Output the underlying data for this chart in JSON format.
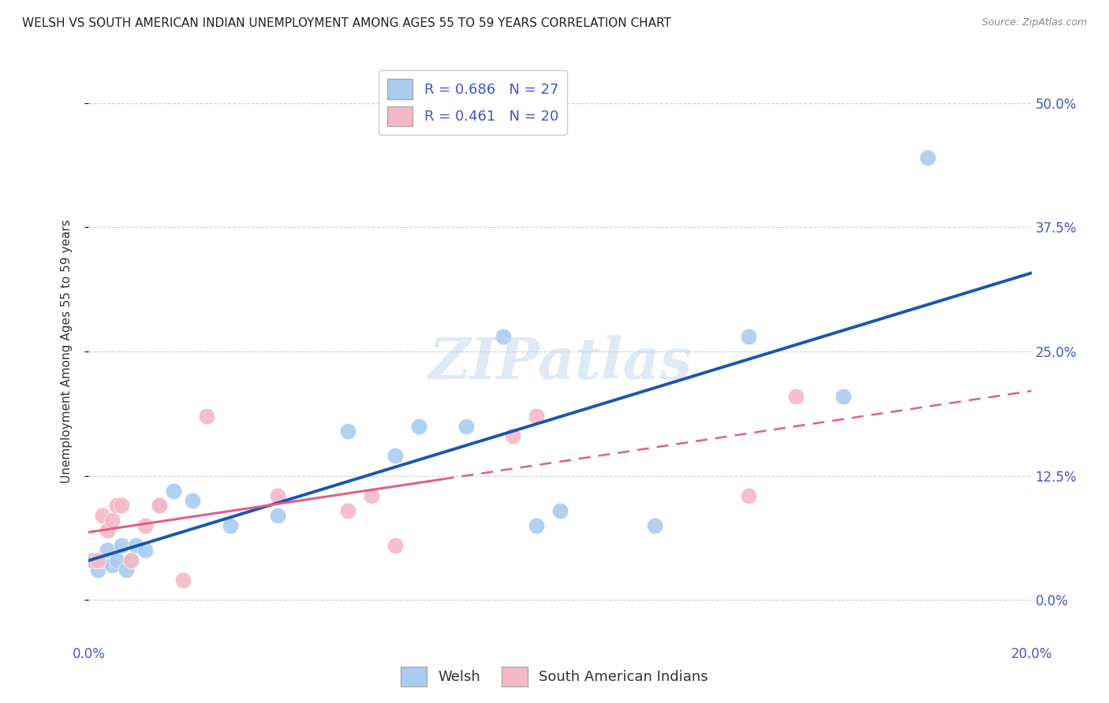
{
  "title": "WELSH VS SOUTH AMERICAN INDIAN UNEMPLOYMENT AMONG AGES 55 TO 59 YEARS CORRELATION CHART",
  "source": "Source: ZipAtlas.com",
  "ylabel": "Unemployment Among Ages 55 to 59 years",
  "xlim": [
    0.0,
    0.2
  ],
  "ylim": [
    -0.04,
    0.54
  ],
  "yticks": [
    0.0,
    0.125,
    0.25,
    0.375,
    0.5
  ],
  "ytick_labels": [
    "0.0%",
    "12.5%",
    "25.0%",
    "37.5%",
    "50.0%"
  ],
  "xticks": [
    0.0,
    0.05,
    0.1,
    0.15,
    0.2
  ],
  "xtick_labels": [
    "0.0%",
    "",
    "",
    "",
    "20.0%"
  ],
  "welsh_R": 0.686,
  "welsh_N": 27,
  "sai_R": 0.461,
  "sai_N": 20,
  "welsh_color": "#aaccf0",
  "welsh_line_color": "#1b55b0",
  "sai_color": "#f5b8c8",
  "sai_line_color": "#e06080",
  "background_color": "#ffffff",
  "grid_color": "#cccccc",
  "welsh_x": [
    0.001,
    0.002,
    0.003,
    0.004,
    0.005,
    0.006,
    0.007,
    0.008,
    0.009,
    0.01,
    0.012,
    0.015,
    0.018,
    0.022,
    0.03,
    0.04,
    0.055,
    0.065,
    0.07,
    0.08,
    0.088,
    0.095,
    0.1,
    0.12,
    0.14,
    0.16,
    0.178
  ],
  "welsh_y": [
    0.04,
    0.03,
    0.04,
    0.05,
    0.035,
    0.04,
    0.055,
    0.03,
    0.04,
    0.055,
    0.05,
    0.095,
    0.11,
    0.1,
    0.075,
    0.085,
    0.17,
    0.145,
    0.175,
    0.175,
    0.265,
    0.075,
    0.09,
    0.075,
    0.265,
    0.205,
    0.445
  ],
  "sai_x": [
    0.001,
    0.002,
    0.003,
    0.004,
    0.005,
    0.006,
    0.007,
    0.009,
    0.012,
    0.015,
    0.02,
    0.025,
    0.04,
    0.055,
    0.06,
    0.065,
    0.09,
    0.095,
    0.14,
    0.15
  ],
  "sai_y": [
    0.04,
    0.04,
    0.085,
    0.07,
    0.08,
    0.095,
    0.095,
    0.04,
    0.075,
    0.095,
    0.02,
    0.185,
    0.105,
    0.09,
    0.105,
    0.055,
    0.165,
    0.185,
    0.105,
    0.205
  ],
  "title_fontsize": 11,
  "axis_label_fontsize": 11,
  "tick_fontsize": 12,
  "legend_fontsize": 13
}
